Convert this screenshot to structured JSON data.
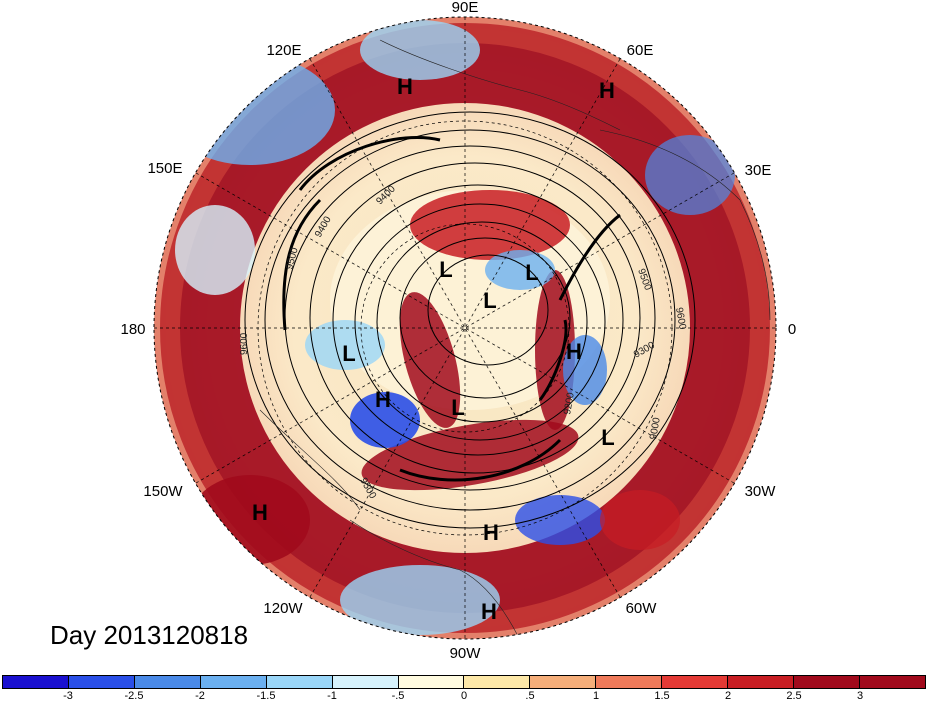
{
  "map": {
    "longitude_labels": [
      "90E",
      "60E",
      "30E",
      "0",
      "30W",
      "60W",
      "90W",
      "120W",
      "150W",
      "180",
      "150E",
      "120E"
    ],
    "pressure_systems": [
      "H",
      "H",
      "L",
      "L",
      "L",
      "H",
      "L",
      "H",
      "L",
      "L",
      "H",
      "H",
      "H"
    ],
    "contour_labels": [
      "9500",
      "9400",
      "9500",
      "9600",
      "9300",
      "9200",
      "9000",
      "9500",
      "9400",
      "9600"
    ]
  },
  "timestamp": "Day 2013120818",
  "colorbar": {
    "colors": [
      "#1a10d0",
      "#2a4fe8",
      "#4a8ae8",
      "#6bb0f0",
      "#9ad6f8",
      "#d6f2fc",
      "#fffbe0",
      "#fde8a8",
      "#f5ae7a",
      "#ef7a5a",
      "#e43a35",
      "#c81d23",
      "#a10a1c"
    ],
    "ticks": [
      "-3",
      "-2.5",
      "-2",
      "-1.5",
      "-1",
      "-.5",
      "0",
      ".5",
      "1",
      "1.5",
      "2",
      "2.5",
      "3"
    ]
  }
}
